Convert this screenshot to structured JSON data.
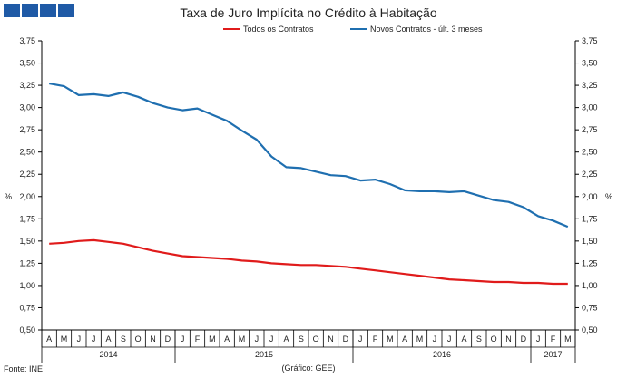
{
  "header": {
    "logo_colors": [
      "#1f5aa6",
      "#1f5aa6",
      "#1f5aa6",
      "#1f5aa6"
    ]
  },
  "footer": {
    "source": "Fonte: INE",
    "credit": "(Gráfico: GEE)"
  },
  "chart_data": {
    "type": "line",
    "title": "Taxa de Juro Implícita no Crédito à Habitação",
    "ylabel_left": "%",
    "ylabel_right": "%",
    "ylim": [
      0.5,
      3.75
    ],
    "ytick_step": 0.25,
    "ytick_labels": [
      "0,50",
      "0,75",
      "1,00",
      "1,25",
      "1,50",
      "1,75",
      "2,00",
      "2,25",
      "2,50",
      "2,75",
      "3,00",
      "3,25",
      "3,50",
      "3,75"
    ],
    "grid": false,
    "legend_position": "top",
    "x": [
      "A",
      "M",
      "J",
      "J",
      "A",
      "S",
      "O",
      "N",
      "D",
      "J",
      "F",
      "M",
      "A",
      "M",
      "J",
      "J",
      "A",
      "S",
      "O",
      "N",
      "D",
      "J",
      "F",
      "M",
      "A",
      "M",
      "J",
      "J",
      "A",
      "S",
      "O",
      "N",
      "D",
      "J",
      "F",
      "M"
    ],
    "year_groups": [
      {
        "label": "2014",
        "count": 9
      },
      {
        "label": "2015",
        "count": 12
      },
      {
        "label": "2016",
        "count": 12
      },
      {
        "label": "2017",
        "count": 3
      }
    ],
    "series": [
      {
        "name": "Todos os Contratos",
        "color": "#e01b1b",
        "values": [
          1.47,
          1.48,
          1.5,
          1.51,
          1.49,
          1.47,
          1.43,
          1.39,
          1.36,
          1.33,
          1.32,
          1.31,
          1.3,
          1.28,
          1.27,
          1.25,
          1.24,
          1.23,
          1.23,
          1.22,
          1.21,
          1.19,
          1.17,
          1.15,
          1.13,
          1.11,
          1.09,
          1.07,
          1.06,
          1.05,
          1.04,
          1.04,
          1.03,
          1.03,
          1.02,
          1.02
        ]
      },
      {
        "name": "Novos Contratos - últ. 3 meses",
        "color": "#1f6fb0",
        "values": [
          3.27,
          3.24,
          3.14,
          3.15,
          3.13,
          3.17,
          3.12,
          3.05,
          3.0,
          2.97,
          2.99,
          2.92,
          2.85,
          2.74,
          2.64,
          2.45,
          2.33,
          2.32,
          2.28,
          2.24,
          2.23,
          2.18,
          2.19,
          2.14,
          2.07,
          2.06,
          2.06,
          2.05,
          2.06,
          2.01,
          1.96,
          1.94,
          1.88,
          1.78,
          1.73,
          1.66
        ]
      }
    ]
  }
}
